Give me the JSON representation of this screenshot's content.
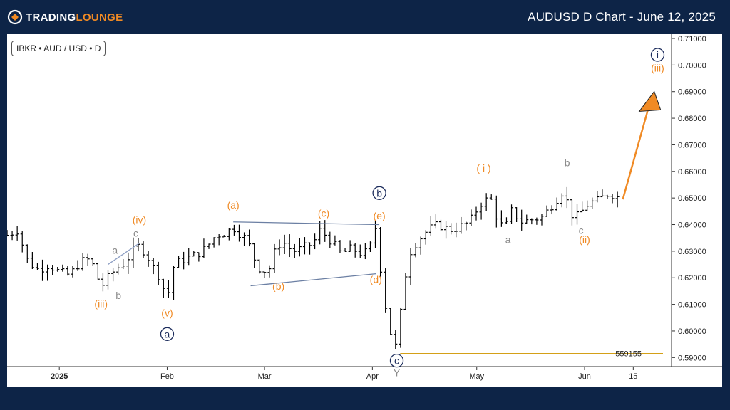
{
  "header": {
    "logo_text_primary": "TRADING",
    "logo_text_accent": "LOUNGE",
    "title": "AUDUSD D Chart - June 12, 2025"
  },
  "symbol_label": "IBKR • AUD / USD • D",
  "colors": {
    "background": "#0d2447",
    "orange": "#f08a24",
    "gray": "#8a8a8a",
    "navy": "#1c2c5c",
    "price": "#000000",
    "invalidation": "#d4a017"
  },
  "chart_data": {
    "type": "ohlc-bar",
    "y_axis": {
      "min": 0.585,
      "max": 0.71,
      "ticks": [
        "0.71000",
        "0.70000",
        "0.69000",
        "0.68000",
        "0.67000",
        "0.66000",
        "0.65000",
        "0.64000",
        "0.63000",
        "0.62000",
        "0.61000",
        "0.60000",
        "0.59000"
      ]
    },
    "x_axis": {
      "ticks": [
        {
          "label": "2025",
          "day": 0,
          "bold": true
        },
        {
          "label": "Feb",
          "day": 31
        },
        {
          "label": "Mar",
          "day": 59
        },
        {
          "label": "Apr",
          "day": 90
        },
        {
          "label": "May",
          "day": 120
        },
        {
          "label": "Jun",
          "day": 151
        },
        {
          "label": "15",
          "day": 165
        }
      ],
      "first_day": -15,
      "last_day": 176
    },
    "price_path": [
      [
        -15,
        0.636
      ],
      [
        -12,
        0.638
      ],
      [
        -9,
        0.626
      ],
      [
        -6,
        0.623
      ],
      [
        -3,
        0.625
      ],
      [
        0,
        0.622
      ],
      [
        3,
        0.621
      ],
      [
        6,
        0.626
      ],
      [
        9,
        0.627
      ],
      [
        12,
        0.6165
      ],
      [
        14,
        0.62
      ],
      [
        16,
        0.623
      ],
      [
        19,
        0.626
      ],
      [
        21,
        0.63
      ],
      [
        23,
        0.632
      ],
      [
        25,
        0.629
      ],
      [
        27,
        0.624
      ],
      [
        29,
        0.62
      ],
      [
        31,
        0.612
      ],
      [
        33,
        0.625
      ],
      [
        36,
        0.627
      ],
      [
        39,
        0.6285
      ],
      [
        42,
        0.631
      ],
      [
        45,
        0.636
      ],
      [
        48,
        0.637
      ],
      [
        50,
        0.639
      ],
      [
        52,
        0.6365
      ],
      [
        54,
        0.634
      ],
      [
        57,
        0.624
      ],
      [
        60,
        0.622
      ],
      [
        62,
        0.63
      ],
      [
        64,
        0.634
      ],
      [
        67,
        0.63
      ],
      [
        70,
        0.631
      ],
      [
        73,
        0.633
      ],
      [
        75,
        0.638
      ],
      [
        78,
        0.634
      ],
      [
        81,
        0.629
      ],
      [
        84,
        0.631
      ],
      [
        87,
        0.629
      ],
      [
        89,
        0.63
      ],
      [
        91,
        0.6395
      ],
      [
        93,
        0.615
      ],
      [
        95,
        0.6
      ],
      [
        97,
        0.593
      ],
      [
        99,
        0.618
      ],
      [
        101,
        0.63
      ],
      [
        103,
        0.634
      ],
      [
        106,
        0.638
      ],
      [
        109,
        0.64
      ],
      [
        112,
        0.638
      ],
      [
        115,
        0.639
      ],
      [
        118,
        0.641
      ],
      [
        121,
        0.648
      ],
      [
        124,
        0.65
      ],
      [
        126,
        0.642
      ],
      [
        128,
        0.638
      ],
      [
        130,
        0.645
      ],
      [
        133,
        0.641
      ],
      [
        136,
        0.642
      ],
      [
        139,
        0.643
      ],
      [
        142,
        0.648
      ],
      [
        145,
        0.653
      ],
      [
        147,
        0.644
      ],
      [
        149,
        0.643
      ],
      [
        152,
        0.648
      ],
      [
        155,
        0.649
      ],
      [
        158,
        0.652
      ],
      [
        161,
        0.65
      ]
    ],
    "bars": [],
    "wave_labels": [
      {
        "text": "(iv)",
        "day": 23,
        "price": 0.6405,
        "color": "orange"
      },
      {
        "text": "c",
        "day": 22,
        "price": 0.6355,
        "color": "gray"
      },
      {
        "text": "a",
        "day": 16,
        "price": 0.629,
        "color": "gray"
      },
      {
        "text": "b",
        "day": 17,
        "price": 0.612,
        "color": "gray"
      },
      {
        "text": "(iii)",
        "day": 12,
        "price": 0.609,
        "color": "orange"
      },
      {
        "text": "(v)",
        "day": 31,
        "price": 0.6055,
        "color": "orange"
      },
      {
        "text": "a",
        "day": 31,
        "price": 0.5975,
        "color": "navy",
        "circled": true
      },
      {
        "text": "(a)",
        "day": 50,
        "price": 0.646,
        "color": "orange"
      },
      {
        "text": "(b)",
        "day": 63,
        "price": 0.6155,
        "color": "orange"
      },
      {
        "text": "(c)",
        "day": 76,
        "price": 0.643,
        "color": "orange"
      },
      {
        "text": "(d)",
        "day": 91,
        "price": 0.618,
        "color": "orange"
      },
      {
        "text": "(e)",
        "day": 92,
        "price": 0.642,
        "color": "orange"
      },
      {
        "text": "b",
        "day": 92,
        "price": 0.6505,
        "color": "navy",
        "circled": true
      },
      {
        "text": "c",
        "day": 97,
        "price": 0.5875,
        "color": "navy",
        "circled": true
      },
      {
        "text": "Y",
        "day": 97,
        "price": 0.583,
        "color": "gray"
      },
      {
        "text": "( i )",
        "day": 122,
        "price": 0.66,
        "color": "orange"
      },
      {
        "text": "a",
        "day": 129,
        "price": 0.633,
        "color": "gray"
      },
      {
        "text": "b",
        "day": 146,
        "price": 0.662,
        "color": "gray"
      },
      {
        "text": "c",
        "day": 150,
        "price": 0.6365,
        "color": "gray"
      },
      {
        "text": "(ii)",
        "day": 151,
        "price": 0.633,
        "color": "orange"
      },
      {
        "text": "i",
        "day": 172,
        "price": 0.7025,
        "color": "navy",
        "circled": true
      },
      {
        "text": "(iii)",
        "day": 172,
        "price": 0.6975,
        "color": "orange"
      }
    ],
    "triangle_upper": [
      [
        50,
        0.641
      ],
      [
        92,
        0.64
      ]
    ],
    "triangle_lower": [
      [
        55,
        0.617
      ],
      [
        91,
        0.6215
      ]
    ],
    "abc_line": [
      [
        14,
        0.625
      ],
      [
        23,
        0.633
      ]
    ],
    "invalidation": {
      "label": "559155",
      "price": 0.59155,
      "from_day": 98,
      "to_day": 177
    },
    "projection_arrow": {
      "from": [
        162,
        0.6495
      ],
      "to": [
        170,
        0.689
      ]
    }
  }
}
